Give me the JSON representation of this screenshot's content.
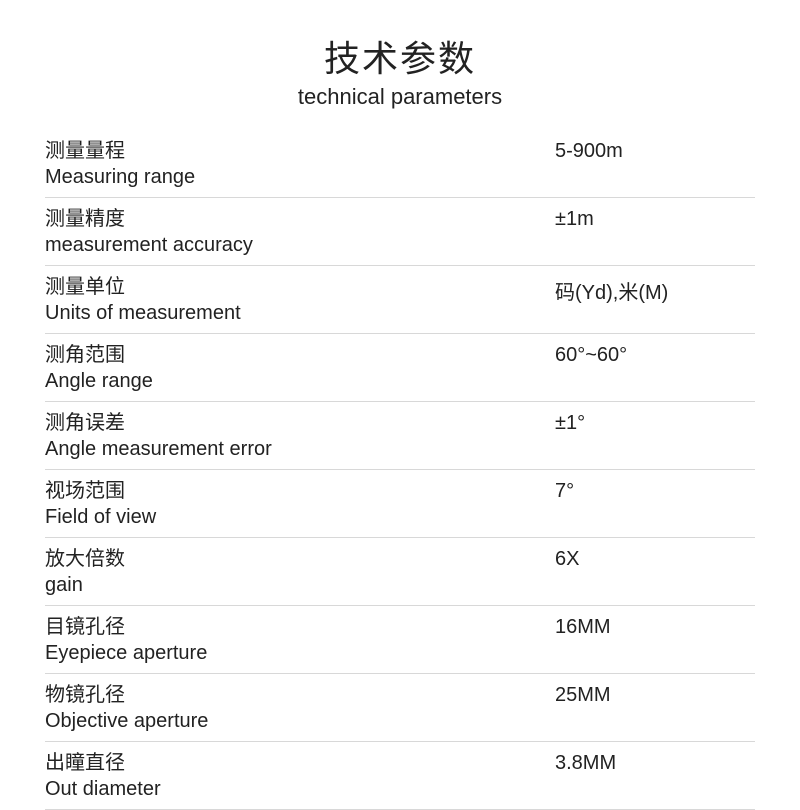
{
  "header": {
    "title_zh": "技术参数",
    "title_en": "technical parameters"
  },
  "specs": [
    {
      "label_zh": "测量量程",
      "label_en": "Measuring range",
      "value": "5-900m"
    },
    {
      "label_zh": "测量精度",
      "label_en": "measurement accuracy",
      "value": "±1m"
    },
    {
      "label_zh": "测量单位",
      "label_en": "Units of measurement",
      "value": "码(Yd),米(M)"
    },
    {
      "label_zh": "测角范围",
      "label_en": "Angle range",
      "value": "60°~60°"
    },
    {
      "label_zh": "测角误差",
      "label_en": "Angle measurement error",
      "value": "±1°"
    },
    {
      "label_zh": "视场范围",
      "label_en": "Field of view",
      "value": "7°"
    },
    {
      "label_zh": "放大倍数",
      "label_en": "gain",
      "value": "6X"
    },
    {
      "label_zh": "目镜孔径",
      "label_en": "Eyepiece aperture",
      "value": "16MM"
    },
    {
      "label_zh": "物镜孔径",
      "label_en": "Objective aperture",
      "value": "25MM"
    },
    {
      "label_zh": "出瞳直径",
      "label_en": "Out diameter",
      "value": "3.8MM"
    }
  ],
  "styling": {
    "background_color": "#ffffff",
    "text_color": "#222222",
    "border_color": "#d8d8d8",
    "title_zh_fontsize": 36,
    "title_en_fontsize": 22,
    "row_fontsize": 20,
    "font_family": "Microsoft YaHei, PingFang SC, Helvetica Neue, Arial, sans-serif"
  }
}
